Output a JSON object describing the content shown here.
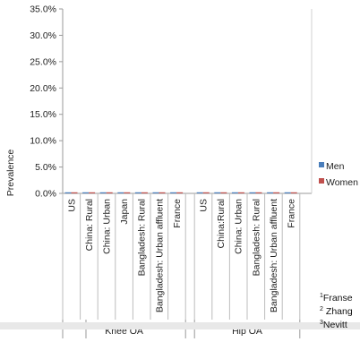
{
  "chart_data": {
    "type": "bar",
    "ylabel": "Prevalence",
    "ylim": [
      0,
      35
    ],
    "y_ticks": [
      "0.0%",
      "5.0%",
      "10.0%",
      "15.0%",
      "20.0%",
      "25.0%",
      "30.0%",
      "35.0%"
    ],
    "y_tick_values": [
      0,
      5,
      10,
      15,
      20,
      25,
      30,
      35
    ],
    "groups": [
      {
        "name": "Knee OA",
        "categories": [
          "US",
          "China: Rural",
          "China: Urban",
          "Japan",
          "Bangladesh: Rural",
          "Bangladesh: Urban affluent",
          "France"
        ]
      },
      {
        "name": "Hip OA",
        "categories": [
          "US",
          "China:Rural",
          "China: Urban",
          "Bangladesh: Rural",
          "Bangladesh: Urban affluent",
          "France"
        ]
      }
    ],
    "series": [
      {
        "name": "Men",
        "color": "#4a7ebb",
        "values": [
          0,
          0,
          0,
          0,
          0,
          0,
          0,
          0,
          0,
          0,
          0,
          0,
          0
        ]
      },
      {
        "name": "Women",
        "color": "#c0504d",
        "values": [
          0,
          0,
          0,
          0,
          0,
          0,
          0,
          0,
          0,
          0,
          0,
          0,
          0
        ]
      }
    ],
    "legend": "right",
    "grid": false
  },
  "footnotes": [
    {
      "sup": "1",
      "text": "Franse"
    },
    {
      "sup": "2",
      "text": "Zhang"
    },
    {
      "sup": "3",
      "text": "Nevitt"
    }
  ]
}
